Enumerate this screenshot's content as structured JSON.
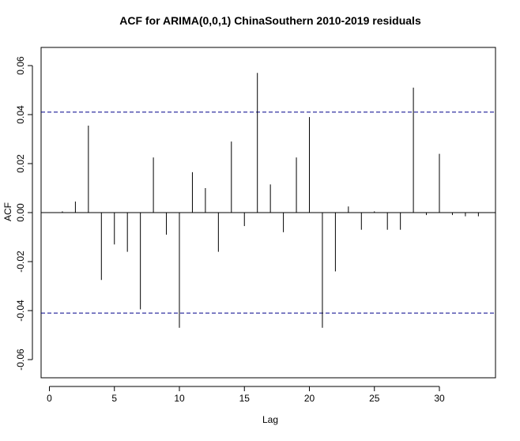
{
  "chart_data": {
    "type": "bar",
    "title": "ACF for ARIMA(0,0,1) ChinaSouthern 2010-2019 residuals",
    "xlabel": "Lag",
    "ylabel": "ACF",
    "xlim": [
      -0.3,
      34.0
    ],
    "ylim": [
      -0.067,
      0.067
    ],
    "x_ticks": [
      0,
      5,
      10,
      15,
      20,
      25,
      30
    ],
    "x_tick_labels": [
      "0",
      "5",
      "10",
      "15",
      "20",
      "25",
      "30"
    ],
    "y_ticks": [
      -0.06,
      -0.04,
      -0.02,
      0.0,
      0.02,
      0.04,
      0.06
    ],
    "y_tick_labels": [
      "-0.06",
      "-0.04",
      "-0.02",
      "0.00",
      "0.02",
      "0.04",
      "0.06"
    ],
    "lags": [
      1,
      2,
      3,
      4,
      5,
      6,
      7,
      8,
      9,
      10,
      11,
      12,
      13,
      14,
      15,
      16,
      17,
      18,
      19,
      20,
      21,
      22,
      23,
      24,
      25,
      26,
      27,
      28,
      29,
      30,
      31,
      32,
      33
    ],
    "values": [
      0.0005,
      0.0045,
      0.0355,
      -0.0275,
      -0.013,
      -0.016,
      -0.0395,
      0.0225,
      -0.009,
      -0.047,
      0.0165,
      0.01,
      -0.016,
      0.029,
      -0.0055,
      0.057,
      0.0115,
      -0.008,
      0.0225,
      0.039,
      -0.047,
      -0.024,
      0.0025,
      -0.007,
      0.0005,
      -0.007,
      -0.007,
      0.051,
      -0.001,
      0.024,
      -0.001,
      -0.0015,
      -0.0015
    ],
    "confidence_bounds": [
      0.041,
      -0.041
    ],
    "colors": {
      "bars": "#000000",
      "confidence": "#00008B",
      "axes": "#000000"
    }
  }
}
